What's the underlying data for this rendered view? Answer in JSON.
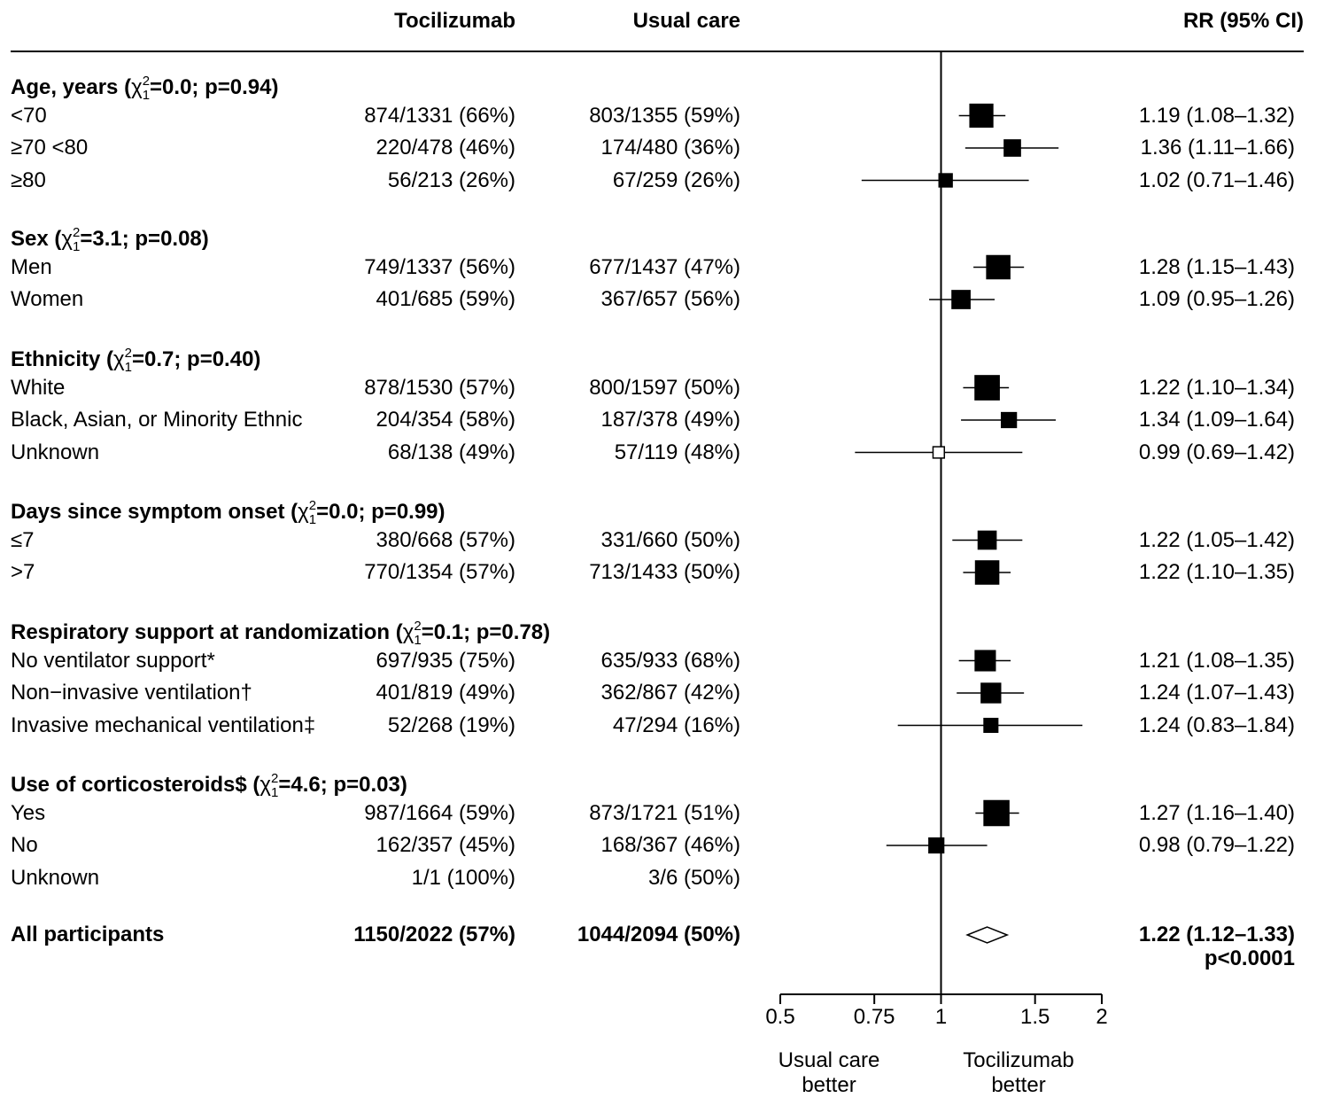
{
  "headers": {
    "tocilizumab": "Tocilizumab",
    "usual_care": "Usual care",
    "rr": "RR (95% CI)"
  },
  "groups": [
    {
      "label": "Age, years",
      "chi": "0.0",
      "p": "p=0.94",
      "rows": [
        {
          "label": "<70",
          "toc": "874/1331 (66%)",
          "uc": "803/1355 (59%)",
          "rr": "1.19 (1.08–1.32)"
        },
        {
          "label": "≥70 <80",
          "toc": "220/478 (46%)",
          "uc": "174/480 (36%)",
          "rr": "1.36 (1.11–1.66)"
        },
        {
          "label": "≥80",
          "toc": "56/213 (26%)",
          "uc": "67/259 (26%)",
          "rr": "1.02 (0.71–1.46)"
        }
      ]
    },
    {
      "label": "Sex",
      "chi": "3.1",
      "p": "p=0.08",
      "rows": [
        {
          "label": "Men",
          "toc": "749/1337 (56%)",
          "uc": "677/1437 (47%)",
          "rr": "1.28 (1.15–1.43)"
        },
        {
          "label": "Women",
          "toc": "401/685 (59%)",
          "uc": "367/657 (56%)",
          "rr": "1.09 (0.95–1.26)"
        }
      ]
    },
    {
      "label": "Ethnicity",
      "chi": "0.7",
      "p": "p=0.40",
      "rows": [
        {
          "label": "White",
          "toc": "878/1530 (57%)",
          "uc": "800/1597 (50%)",
          "rr": "1.22 (1.10–1.34)"
        },
        {
          "label": "Black, Asian, or Minority Ethnic",
          "toc": "204/354 (58%)",
          "uc": "187/378 (49%)",
          "rr": "1.34 (1.09–1.64)"
        },
        {
          "label": "Unknown",
          "toc": "68/138 (49%)",
          "uc": "57/119 (48%)",
          "rr": "0.99 (0.69–1.42)"
        }
      ]
    },
    {
      "label": "Days since symptom onset",
      "chi": "0.0",
      "p": "p=0.99",
      "rows": [
        {
          "label": "≤7",
          "toc": "380/668 (57%)",
          "uc": "331/660 (50%)",
          "rr": "1.22 (1.05–1.42)"
        },
        {
          "label": ">7",
          "toc": "770/1354 (57%)",
          "uc": "713/1433 (50%)",
          "rr": "1.22 (1.10–1.35)"
        }
      ]
    },
    {
      "label": "Respiratory support at randomization",
      "chi": "0.1",
      "p": "p=0.78",
      "rows": [
        {
          "label": "No ventilator support*",
          "toc": "697/935 (75%)",
          "uc": "635/933 (68%)",
          "rr": "1.21 (1.08–1.35)"
        },
        {
          "label": "Non−invasive ventilation†",
          "toc": "401/819 (49%)",
          "uc": "362/867 (42%)",
          "rr": "1.24 (1.07–1.43)"
        },
        {
          "label": "Invasive mechanical ventilation‡",
          "toc": "52/268 (19%)",
          "uc": "47/294 (16%)",
          "rr": "1.24 (0.83–1.84)"
        }
      ]
    },
    {
      "label": "Use of corticosteroids$",
      "chi": "4.6",
      "p": "p=0.03",
      "rows": [
        {
          "label": "Yes",
          "toc": "987/1664 (59%)",
          "uc": "873/1721 (51%)",
          "rr": "1.27 (1.16–1.40)"
        },
        {
          "label": "No",
          "toc": "162/357 (45%)",
          "uc": "168/367 (46%)",
          "rr": "0.98 (0.79–1.22)"
        },
        {
          "label": "Unknown",
          "toc": "1/1 (100%)",
          "uc": "3/6 (50%)",
          "rr": ""
        }
      ]
    }
  ],
  "overall": {
    "label": "All participants",
    "toc": "1150/2022 (57%)",
    "uc": "1044/2094 (50%)",
    "rr": "1.22 (1.12–1.33)",
    "p": "p<0.0001"
  },
  "chi_symbol": "χ",
  "chi_sub": "1",
  "chi_sup": "2",
  "axis": {
    "ticks": [
      "0.5",
      "0.75",
      "1",
      "1.5",
      "2"
    ],
    "left_label_1": "Usual care",
    "left_label_2": "better",
    "right_label_1": "Tocilizumab",
    "right_label_2": "better"
  },
  "chart_data": {
    "type": "forest",
    "scale": "log",
    "xlim": [
      0.5,
      2
    ],
    "reference": 1,
    "ticks": [
      0.5,
      0.75,
      1,
      1.5,
      2
    ],
    "points": [
      {
        "label": "<70",
        "rr": 1.19,
        "lo": 1.08,
        "hi": 1.32,
        "n": 2686,
        "filled": true
      },
      {
        "label": "≥70 <80",
        "rr": 1.36,
        "lo": 1.11,
        "hi": 1.66,
        "n": 958,
        "filled": true
      },
      {
        "label": "≥80",
        "rr": 1.02,
        "lo": 0.71,
        "hi": 1.46,
        "n": 472,
        "filled": true
      },
      {
        "label": "Men",
        "rr": 1.28,
        "lo": 1.15,
        "hi": 1.43,
        "n": 2774,
        "filled": true
      },
      {
        "label": "Women",
        "rr": 1.09,
        "lo": 0.95,
        "hi": 1.26,
        "n": 1342,
        "filled": true
      },
      {
        "label": "White",
        "rr": 1.22,
        "lo": 1.1,
        "hi": 1.34,
        "n": 3127,
        "filled": true
      },
      {
        "label": "Black, Asian, or Minority Ethnic",
        "rr": 1.34,
        "lo": 1.09,
        "hi": 1.64,
        "n": 732,
        "filled": true
      },
      {
        "label": "Unknown",
        "rr": 0.99,
        "lo": 0.69,
        "hi": 1.42,
        "n": 257,
        "filled": false
      },
      {
        "label": "≤7",
        "rr": 1.22,
        "lo": 1.05,
        "hi": 1.42,
        "n": 1328,
        "filled": true
      },
      {
        "label": ">7",
        "rr": 1.22,
        "lo": 1.1,
        "hi": 1.35,
        "n": 2787,
        "filled": true
      },
      {
        "label": "No ventilator support*",
        "rr": 1.21,
        "lo": 1.08,
        "hi": 1.35,
        "n": 1868,
        "filled": true
      },
      {
        "label": "Non−invasive ventilation†",
        "rr": 1.24,
        "lo": 1.07,
        "hi": 1.43,
        "n": 1686,
        "filled": true
      },
      {
        "label": "Invasive mechanical ventilation‡",
        "rr": 1.24,
        "lo": 0.83,
        "hi": 1.84,
        "n": 562,
        "filled": true
      },
      {
        "label": "Yes",
        "rr": 1.27,
        "lo": 1.16,
        "hi": 1.4,
        "n": 3385,
        "filled": true
      },
      {
        "label": "No",
        "rr": 0.98,
        "lo": 0.79,
        "hi": 1.22,
        "n": 724,
        "filled": true
      }
    ],
    "overall": {
      "label": "All participants",
      "rr": 1.22,
      "lo": 1.12,
      "hi": 1.33
    }
  }
}
